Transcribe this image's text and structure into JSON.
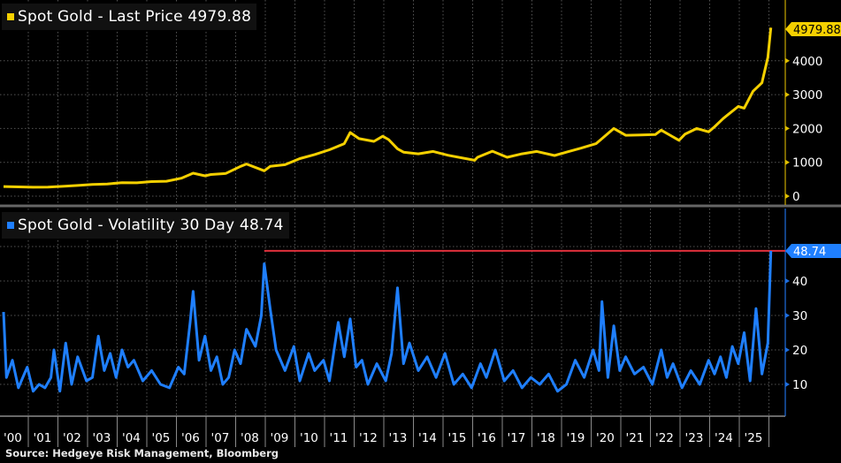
{
  "legends": {
    "price": {
      "label": "Spot Gold - Last Price",
      "value": "4979.88",
      "color": "#f5d000"
    },
    "vol": {
      "label": "Spot Gold - Volatility 30 Day",
      "value": "48.74",
      "color": "#1f7fff"
    }
  },
  "source": "Source: Hedgeye Risk Management, Bloomberg",
  "colors": {
    "background": "#000000",
    "price": "#f5d000",
    "vol": "#1f7fff",
    "ref_line": "#e0303c",
    "grid": "#444444",
    "axis_text": "#ffffff"
  },
  "chart_data": [
    {
      "type": "line",
      "title": "Spot Gold - Last Price 4979.88",
      "xlabel": "",
      "ylabel": "",
      "x_tick_labels": [
        "'00",
        "'01",
        "'02",
        "'03",
        "'04",
        "'05",
        "'06",
        "'07",
        "'08",
        "'09",
        "'10",
        "'11",
        "'12",
        "'13",
        "'14",
        "'15",
        "'16",
        "'17",
        "'18",
        "'19",
        "'20",
        "'21",
        "'22",
        "'23",
        "'24",
        "'25"
      ],
      "y_tick_labels": [
        "0",
        "1000",
        "2000",
        "3000",
        "4000"
      ],
      "ylim": [
        0,
        5000
      ],
      "grid": true,
      "last_value_label": "4979.88",
      "series": [
        {
          "name": "Spot Gold - Last Price",
          "x": [
            2000.0,
            2000.5,
            2001.0,
            2001.5,
            2002.0,
            2002.5,
            2003.0,
            2003.5,
            2004.0,
            2004.5,
            2005.0,
            2005.5,
            2006.0,
            2006.4,
            2006.8,
            2007.0,
            2007.5,
            2008.0,
            2008.2,
            2008.8,
            2009.0,
            2009.5,
            2010.0,
            2010.5,
            2011.0,
            2011.5,
            2011.7,
            2012.0,
            2012.5,
            2012.8,
            2013.0,
            2013.3,
            2013.5,
            2014.0,
            2014.5,
            2015.0,
            2015.9,
            2016.0,
            2016.5,
            2017.0,
            2017.5,
            2018.0,
            2018.6,
            2019.0,
            2019.5,
            2020.0,
            2020.6,
            2021.0,
            2021.5,
            2022.0,
            2022.2,
            2022.8,
            2023.0,
            2023.4,
            2023.8,
            2024.0,
            2024.3,
            2024.8,
            2025.0,
            2025.3,
            2025.6,
            2025.8,
            2025.9
          ],
          "values": [
            285,
            275,
            265,
            270,
            290,
            315,
            345,
            360,
            400,
            395,
            430,
            440,
            530,
            680,
            600,
            640,
            670,
            880,
            950,
            750,
            880,
            930,
            1110,
            1230,
            1370,
            1550,
            1880,
            1700,
            1620,
            1770,
            1670,
            1400,
            1300,
            1250,
            1320,
            1210,
            1060,
            1150,
            1330,
            1150,
            1250,
            1320,
            1200,
            1300,
            1420,
            1550,
            2000,
            1800,
            1810,
            1820,
            1950,
            1650,
            1830,
            2000,
            1900,
            2050,
            2300,
            2650,
            2600,
            3100,
            3350,
            4100,
            4979.88
          ]
        }
      ]
    },
    {
      "type": "line",
      "title": "Spot Gold - Volatility 30 Day 48.74",
      "xlabel": "",
      "ylabel": "",
      "x_tick_labels": [
        "'00",
        "'01",
        "'02",
        "'03",
        "'04",
        "'05",
        "'06",
        "'07",
        "'08",
        "'09",
        "'10",
        "'11",
        "'12",
        "'13",
        "'14",
        "'15",
        "'16",
        "'17",
        "'18",
        "'19",
        "'20",
        "'21",
        "'22",
        "'23",
        "'24",
        "'25"
      ],
      "y_tick_labels": [
        "10",
        "20",
        "30",
        "40"
      ],
      "ylim": [
        3,
        55
      ],
      "grid": true,
      "last_value_label": "48.74",
      "reference_line": {
        "value": 48.74,
        "color": "#e0303c",
        "from": 2008.8
      },
      "series": [
        {
          "name": "Spot Gold - Volatility 30 Day",
          "x": [
            2000.0,
            2000.1,
            2000.3,
            2000.5,
            2000.8,
            2001.0,
            2001.2,
            2001.4,
            2001.6,
            2001.7,
            2001.9,
            2002.1,
            2002.3,
            2002.5,
            2002.8,
            2003.0,
            2003.2,
            2003.4,
            2003.6,
            2003.8,
            2004.0,
            2004.2,
            2004.4,
            2004.7,
            2005.0,
            2005.3,
            2005.6,
            2005.9,
            2006.1,
            2006.3,
            2006.4,
            2006.6,
            2006.8,
            2007.0,
            2007.2,
            2007.4,
            2007.6,
            2007.8,
            2008.0,
            2008.2,
            2008.5,
            2008.7,
            2008.8,
            2009.0,
            2009.2,
            2009.5,
            2009.8,
            2010.0,
            2010.3,
            2010.5,
            2010.8,
            2011.0,
            2011.3,
            2011.5,
            2011.7,
            2011.9,
            2012.1,
            2012.3,
            2012.6,
            2012.9,
            2013.1,
            2013.3,
            2013.5,
            2013.7,
            2014.0,
            2014.3,
            2014.6,
            2014.9,
            2015.2,
            2015.5,
            2015.8,
            2016.1,
            2016.3,
            2016.6,
            2016.9,
            2017.2,
            2017.5,
            2017.8,
            2018.1,
            2018.4,
            2018.7,
            2019.0,
            2019.3,
            2019.6,
            2019.9,
            2020.1,
            2020.2,
            2020.4,
            2020.6,
            2020.8,
            2021.0,
            2021.3,
            2021.6,
            2021.9,
            2022.2,
            2022.4,
            2022.6,
            2022.9,
            2023.2,
            2023.5,
            2023.8,
            2024.0,
            2024.2,
            2024.4,
            2024.6,
            2024.8,
            2025.0,
            2025.2,
            2025.4,
            2025.6,
            2025.8,
            2025.9
          ],
          "values": [
            31,
            12,
            17,
            9,
            15,
            8,
            10,
            9,
            12,
            20,
            8,
            22,
            10,
            18,
            11,
            12,
            24,
            14,
            19,
            12,
            20,
            15,
            17,
            11,
            14,
            10,
            9,
            15,
            13,
            28,
            37,
            17,
            24,
            14,
            18,
            10,
            12,
            20,
            16,
            26,
            21,
            30,
            45,
            32,
            20,
            14,
            21,
            11,
            19,
            14,
            17,
            11,
            28,
            18,
            29,
            15,
            17,
            10,
            16,
            11,
            19,
            38,
            16,
            22,
            14,
            18,
            12,
            19,
            10,
            13,
            9,
            16,
            12,
            20,
            11,
            14,
            9,
            12,
            10,
            13,
            8,
            10,
            17,
            12,
            20,
            14,
            34,
            12,
            27,
            14,
            18,
            13,
            15,
            10,
            20,
            12,
            16,
            9,
            14,
            10,
            17,
            13,
            18,
            12,
            21,
            16,
            25,
            11,
            32,
            13,
            22,
            48.74
          ]
        }
      ]
    }
  ]
}
